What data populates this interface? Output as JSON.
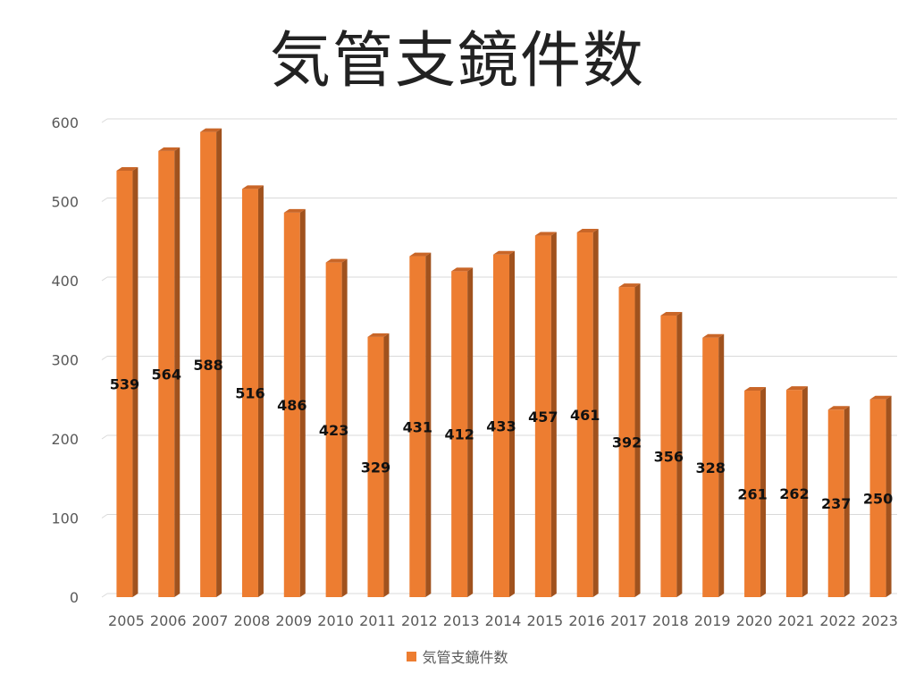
{
  "chart_data": {
    "type": "bar",
    "title": "気管支鏡件数",
    "categories": [
      "2005",
      "2006",
      "2007",
      "2008",
      "2009",
      "2010",
      "2011",
      "2012",
      "2013",
      "2014",
      "2015",
      "2016",
      "2017",
      "2018",
      "2019",
      "2020",
      "2021",
      "2022",
      "2023"
    ],
    "series": [
      {
        "name": "気管支鏡件数",
        "values": [
          539,
          564,
          588,
          516,
          486,
          423,
          329,
          431,
          412,
          433,
          457,
          461,
          392,
          356,
          328,
          261,
          262,
          237,
          250
        ]
      }
    ],
    "y_ticks": [
      "0",
      "100",
      "200",
      "300",
      "400",
      "500",
      "600"
    ],
    "ylim": [
      0,
      600
    ],
    "grid": true,
    "legend_position": "bottom",
    "bar_color": "#ED7D31",
    "bar_side_color": "#A0521E",
    "bar_top_color": "#C96628"
  }
}
